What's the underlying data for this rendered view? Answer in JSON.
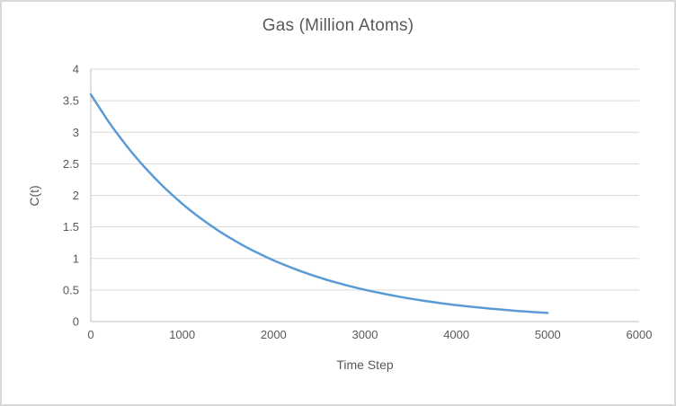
{
  "chart_data": {
    "type": "line",
    "title": "Gas (Million Atoms)",
    "xlabel": "Time Step",
    "ylabel": "C(t)",
    "xlim": [
      0,
      6000
    ],
    "ylim": [
      0,
      4
    ],
    "x_ticks": [
      0,
      1000,
      2000,
      3000,
      4000,
      5000,
      6000
    ],
    "x_tick_labels": [
      "0",
      "1000",
      "2000",
      "3000",
      "4000",
      "5000",
      "6000"
    ],
    "y_ticks": [
      0,
      0.5,
      1,
      1.5,
      2,
      2.5,
      3,
      3.5,
      4
    ],
    "y_tick_labels": [
      "0",
      "0.5",
      "1",
      "1.5",
      "2",
      "2.5",
      "3",
      "3.5",
      "4"
    ],
    "grid": "horizontal",
    "legend": "none",
    "series": [
      {
        "name": "C(t)",
        "color": "#5B9BD5",
        "x": [
          0,
          200,
          400,
          600,
          800,
          1000,
          1200,
          1400,
          1600,
          1800,
          2000,
          2200,
          2400,
          2600,
          2800,
          3000,
          3200,
          3400,
          3600,
          3800,
          4000,
          4200,
          4400,
          4600,
          4800,
          5000
        ],
        "values": [
          3.6,
          3.158,
          2.769,
          2.429,
          2.13,
          1.868,
          1.639,
          1.437,
          1.261,
          1.106,
          0.97,
          0.851,
          0.746,
          0.654,
          0.574,
          0.503,
          0.442,
          0.387,
          0.34,
          0.298,
          0.261,
          0.229,
          0.201,
          0.176,
          0.155,
          0.136
        ]
      }
    ],
    "colors": {
      "series": "#5B9BD5",
      "text": "#595959",
      "gridline": "#D9D9D9",
      "axis": "#BFBFBF",
      "border": "#D9D9D9",
      "background": "#FFFFFF"
    }
  }
}
